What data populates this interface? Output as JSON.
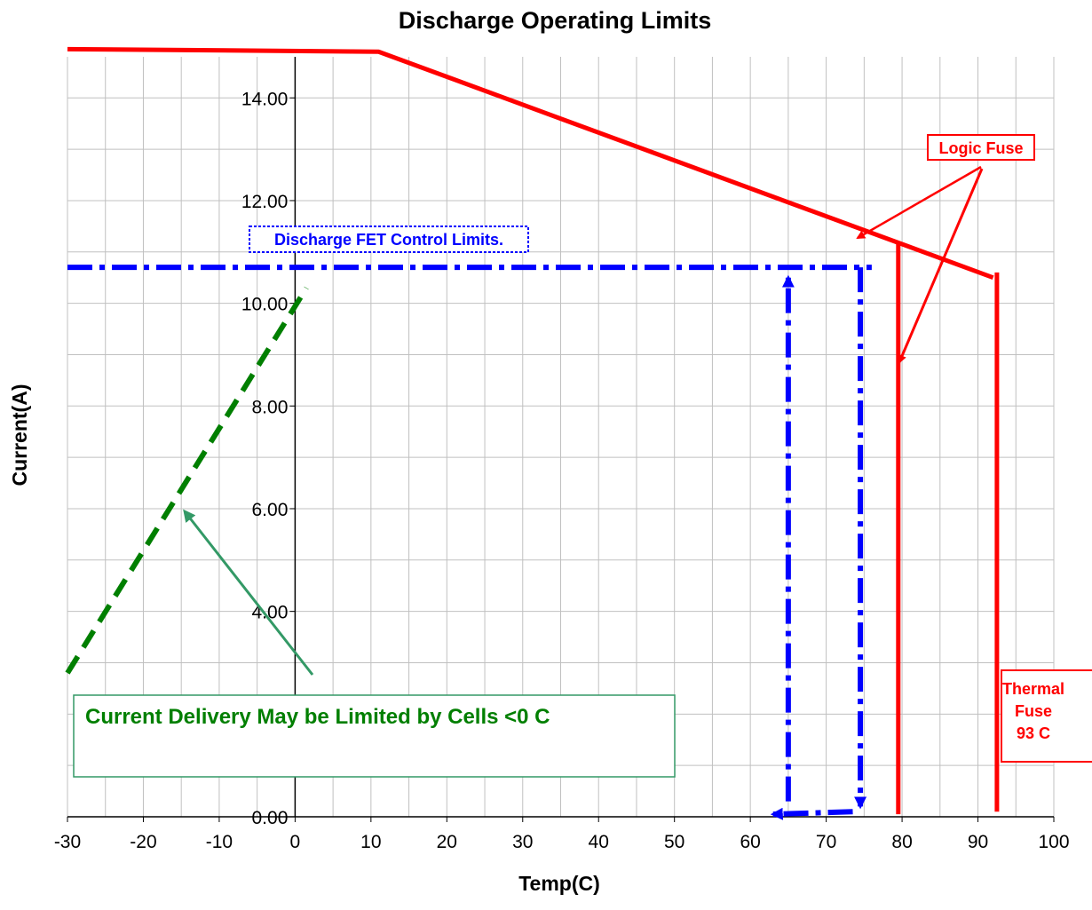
{
  "chart_data": {
    "type": "line",
    "title": "Discharge Operating Limits",
    "xlabel": "Temp(C)",
    "ylabel": "Current(A)",
    "xlim": [
      -30,
      100
    ],
    "ylim": [
      0,
      14.8
    ],
    "x_ticks": [
      "-30",
      "-10",
      "-20",
      "0",
      "10",
      "20",
      "30",
      "40",
      "50",
      "60",
      "70",
      "80",
      "90",
      "100"
    ],
    "x_tick_values": [
      -30,
      -10,
      -20,
      0,
      10,
      20,
      30,
      40,
      50,
      60,
      70,
      80,
      90,
      100
    ],
    "y_ticks": [
      "0.00",
      "4.00",
      "6.00",
      "8.00",
      "10.00",
      "12.00",
      "14.00"
    ],
    "y_tick_values": [
      0,
      4,
      6,
      8,
      10,
      12,
      14
    ],
    "grid": true,
    "legend": "none",
    "colors": {
      "fuse": "#ff0000",
      "fet": "#0000ff",
      "cells": "#007f00",
      "cells_arrow": "#339966",
      "grid": "#c0c0c0"
    },
    "series": [
      {
        "points": [
          [
            -30,
            14.95
          ],
          [
            11,
            14.9
          ],
          [
            92,
            10.5
          ]
        ],
        "color": "#ff0000",
        "style": "solid"
      },
      {
        "points": [
          [
            -30,
            10.7
          ],
          [
            76,
            10.7
          ]
        ],
        "color": "#0000ff",
        "style": "dashdot"
      },
      {
        "points": [
          [
            65,
            0.3
          ],
          [
            65,
            10.5
          ]
        ],
        "color": "#0000ff",
        "style": "dashdot"
      },
      {
        "points": [
          [
            74.5,
            10.7
          ],
          [
            74.5,
            0.2
          ]
        ],
        "color": "#0000ff",
        "style": "dashdot"
      },
      {
        "points": [
          [
            73.5,
            0.1
          ],
          [
            63,
            0.05
          ]
        ],
        "color": "#0000ff",
        "style": "dashdot"
      },
      {
        "points": [
          [
            -30,
            2.8
          ],
          [
            1.5,
            10.3
          ]
        ],
        "color": "#007f00",
        "style": "dashed"
      },
      {
        "points": [
          [
            79.5,
            0.05
          ],
          [
            79.5,
            11.2
          ]
        ],
        "color": "#ff0000",
        "style": "solid"
      },
      {
        "points": [
          [
            92.5,
            0.1
          ],
          [
            92.5,
            10.6
          ]
        ],
        "color": "#ff0000",
        "style": "solid"
      }
    ],
    "annotations": {
      "fet_label": "Discharge FET Control Limits.",
      "logic_fuse": "Logic Fuse",
      "thermal_fuse_lines": [
        "Thermal",
        "Fuse",
        "93  C"
      ],
      "cells_note": "Current Delivery May be Limited by Cells <0  C"
    }
  }
}
